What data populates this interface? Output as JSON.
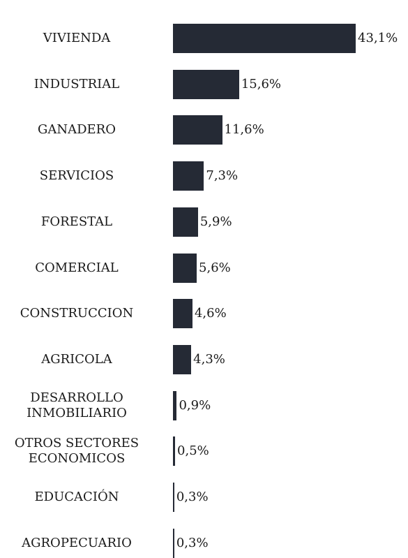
{
  "chart_data": {
    "type": "bar",
    "orientation": "horizontal",
    "color": "#252a35",
    "categories": [
      "VIVIENDA",
      "INDUSTRIAL",
      "GANADERO",
      "SERVICIOS",
      "FORESTAL",
      "COMERCIAL",
      "CONSTRUCCION",
      "AGRICOLA",
      "DESARROLLO\nINMOBILIARIO",
      "OTROS SECTORES\nECONOMICOS",
      "EDUCACIÓN",
      "AGROPECUARIO"
    ],
    "values": [
      43.1,
      15.6,
      11.6,
      7.3,
      5.9,
      5.6,
      4.6,
      4.3,
      0.9,
      0.5,
      0.3,
      0.3
    ],
    "value_labels": [
      "43,1%",
      "15,6%",
      "11,6%",
      "7,3%",
      "5,9%",
      "5,6%",
      "4,6%",
      "4,3%",
      "0,9%",
      "0,5%",
      "0,3%",
      "0,3%"
    ]
  }
}
